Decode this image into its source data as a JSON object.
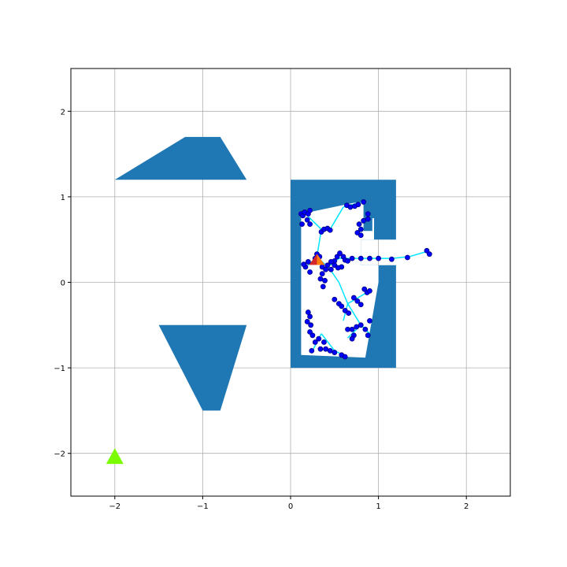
{
  "chart_data": {
    "type": "scatter",
    "title": "",
    "xlabel": "",
    "ylabel": "",
    "xlim": [
      -2.5,
      2.5
    ],
    "ylim": [
      -2.5,
      2.5
    ],
    "grid": true,
    "legend": "none",
    "x_ticks": [
      -2,
      -1,
      0,
      1,
      2
    ],
    "y_ticks": [
      -2,
      -1,
      0,
      1,
      2
    ],
    "x_tick_labels": [
      "−2",
      "−1",
      "0",
      "1",
      "2"
    ],
    "y_tick_labels": [
      "−2",
      "−1",
      "0",
      "1",
      "2"
    ],
    "colors": {
      "obstacle": "#1f77b4",
      "edge": "#00e5ff",
      "node": "#0000ff",
      "node_edge": "#000080",
      "start_marker_left": "#d62728",
      "start_marker_right": "#ff7f0e",
      "goal_marker": "#7cfc00",
      "grid": "#b0b0b0"
    },
    "obstacles": [
      {
        "name": "upper-trapezoid",
        "points": [
          [
            -2.0,
            1.2
          ],
          [
            -1.2,
            1.7
          ],
          [
            -0.8,
            1.7
          ],
          [
            -0.5,
            1.2
          ]
        ]
      },
      {
        "name": "lower-trapezoid",
        "points": [
          [
            -1.5,
            -0.5
          ],
          [
            -0.5,
            -0.5
          ],
          [
            -0.8,
            -1.5
          ],
          [
            -1.0,
            -1.5
          ]
        ]
      },
      {
        "name": "enclosure",
        "points": [
          [
            0.0,
            1.2
          ],
          [
            1.2,
            1.2
          ],
          [
            1.2,
            0.5
          ],
          [
            0.8,
            0.5
          ],
          [
            0.8,
            0.2
          ],
          [
            1.2,
            0.2
          ],
          [
            1.2,
            -1.0
          ],
          [
            0.0,
            -1.0
          ]
        ]
      }
    ],
    "free_region": [
      [
        0.12,
        0.8
      ],
      [
        0.72,
        0.93
      ],
      [
        0.83,
        0.93
      ],
      [
        0.83,
        0.6
      ],
      [
        0.93,
        0.6
      ],
      [
        0.93,
        0.75
      ],
      [
        0.95,
        0.75
      ],
      [
        0.95,
        0.5
      ],
      [
        0.8,
        0.5
      ],
      [
        0.8,
        0.2
      ],
      [
        1.0,
        0.2
      ],
      [
        1.0,
        -0.0
      ],
      [
        0.85,
        -0.88
      ],
      [
        0.12,
        -0.85
      ]
    ],
    "start": {
      "x": 0.3,
      "y": 0.25
    },
    "goal": {
      "x": -2.0,
      "y": -2.05
    },
    "tree_edges": [
      [
        [
          0.3,
          0.3
        ],
        [
          0.35,
          0.62
        ]
      ],
      [
        [
          0.35,
          0.62
        ],
        [
          0.45,
          0.62
        ]
      ],
      [
        [
          0.35,
          0.62
        ],
        [
          0.25,
          0.72
        ]
      ],
      [
        [
          0.25,
          0.72
        ],
        [
          0.15,
          0.82
        ]
      ],
      [
        [
          0.45,
          0.62
        ],
        [
          0.6,
          0.88
        ]
      ],
      [
        [
          0.6,
          0.88
        ],
        [
          0.85,
          0.95
        ]
      ],
      [
        [
          0.3,
          0.3
        ],
        [
          0.45,
          0.15
        ]
      ],
      [
        [
          0.45,
          0.15
        ],
        [
          0.55,
          0.0
        ]
      ],
      [
        [
          0.55,
          0.0
        ],
        [
          0.65,
          -0.25
        ]
      ],
      [
        [
          0.65,
          -0.25
        ],
        [
          0.8,
          -0.5
        ]
      ],
      [
        [
          0.8,
          -0.5
        ],
        [
          0.9,
          -0.6
        ]
      ],
      [
        [
          0.65,
          -0.25
        ],
        [
          0.9,
          -0.1
        ]
      ],
      [
        [
          0.55,
          0.28
        ],
        [
          0.75,
          0.28
        ]
      ],
      [
        [
          0.75,
          0.28
        ],
        [
          1.15,
          0.28
        ]
      ],
      [
        [
          1.15,
          0.28
        ],
        [
          1.35,
          0.3
        ]
      ],
      [
        [
          1.35,
          0.3
        ],
        [
          1.55,
          0.36
        ]
      ],
      [
        [
          0.55,
          0.28
        ],
        [
          0.45,
          0.2
        ]
      ],
      [
        [
          0.3,
          0.3
        ],
        [
          0.2,
          0.2
        ]
      ],
      [
        [
          0.35,
          -0.6
        ],
        [
          0.25,
          -0.8
        ]
      ],
      [
        [
          0.35,
          -0.6
        ],
        [
          0.5,
          -0.8
        ]
      ],
      [
        [
          0.5,
          -0.8
        ],
        [
          0.6,
          -0.85
        ]
      ],
      [
        [
          0.8,
          -0.5
        ],
        [
          0.65,
          -0.65
        ]
      ],
      [
        [
          0.65,
          -0.25
        ],
        [
          0.6,
          -0.45
        ]
      ]
    ],
    "tree_nodes": [
      [
        0.12,
        0.8
      ],
      [
        0.14,
        0.78
      ],
      [
        0.16,
        0.82
      ],
      [
        0.2,
        0.8
      ],
      [
        0.22,
        0.84
      ],
      [
        0.19,
        0.73
      ],
      [
        0.13,
        0.68
      ],
      [
        0.22,
        0.68
      ],
      [
        0.35,
        0.59
      ],
      [
        0.38,
        0.62
      ],
      [
        0.42,
        0.63
      ],
      [
        0.45,
        0.61
      ],
      [
        0.64,
        0.9
      ],
      [
        0.68,
        0.88
      ],
      [
        0.73,
        0.89
      ],
      [
        0.77,
        0.91
      ],
      [
        0.83,
        0.94
      ],
      [
        0.88,
        0.8
      ],
      [
        0.88,
        0.74
      ],
      [
        0.83,
        0.72
      ],
      [
        0.78,
        0.68
      ],
      [
        0.8,
        0.62
      ],
      [
        0.76,
        0.58
      ],
      [
        0.8,
        0.55
      ],
      [
        0.28,
        0.28
      ],
      [
        0.3,
        0.33
      ],
      [
        0.33,
        0.3
      ],
      [
        0.2,
        0.24
      ],
      [
        0.17,
        0.18
      ],
      [
        0.15,
        0.21
      ],
      [
        0.22,
        0.12
      ],
      [
        0.36,
        0.18
      ],
      [
        0.4,
        0.15
      ],
      [
        0.36,
        0.1
      ],
      [
        0.34,
        0.04
      ],
      [
        0.39,
        0.02
      ],
      [
        0.37,
        -0.05
      ],
      [
        0.5,
        0.25
      ],
      [
        0.53,
        0.3
      ],
      [
        0.56,
        0.34
      ],
      [
        0.5,
        0.2
      ],
      [
        0.46,
        0.24
      ],
      [
        0.6,
        0.3
      ],
      [
        0.62,
        0.26
      ],
      [
        0.65,
        0.25
      ],
      [
        0.7,
        0.28
      ],
      [
        0.58,
        0.18
      ],
      [
        0.8,
        0.28
      ],
      [
        0.9,
        0.28
      ],
      [
        1.0,
        0.28
      ],
      [
        1.15,
        0.27
      ],
      [
        1.33,
        0.29
      ],
      [
        1.55,
        0.37
      ],
      [
        1.58,
        0.33
      ],
      [
        0.42,
        0.2
      ],
      [
        0.46,
        0.15
      ],
      [
        0.54,
        0.17
      ],
      [
        0.5,
        -0.2
      ],
      [
        0.55,
        -0.25
      ],
      [
        0.58,
        -0.28
      ],
      [
        0.62,
        -0.33
      ],
      [
        0.66,
        -0.36
      ],
      [
        0.72,
        -0.18
      ],
      [
        0.76,
        -0.22
      ],
      [
        0.8,
        -0.26
      ],
      [
        0.84,
        -0.08
      ],
      [
        0.87,
        -0.12
      ],
      [
        0.9,
        -0.1
      ],
      [
        0.2,
        -0.35
      ],
      [
        0.22,
        -0.4
      ],
      [
        0.19,
        -0.46
      ],
      [
        0.23,
        -0.5
      ],
      [
        0.22,
        -0.58
      ],
      [
        0.25,
        -0.62
      ],
      [
        0.28,
        -0.7
      ],
      [
        0.32,
        -0.66
      ],
      [
        0.38,
        -0.7
      ],
      [
        0.4,
        -0.78
      ],
      [
        0.34,
        -0.78
      ],
      [
        0.24,
        -0.8
      ],
      [
        0.45,
        -0.8
      ],
      [
        0.5,
        -0.82
      ],
      [
        0.58,
        -0.85
      ],
      [
        0.62,
        -0.87
      ],
      [
        0.65,
        -0.55
      ],
      [
        0.7,
        -0.55
      ],
      [
        0.75,
        -0.52
      ],
      [
        0.8,
        -0.5
      ],
      [
        0.85,
        -0.55
      ],
      [
        0.88,
        -0.62
      ],
      [
        0.72,
        -0.62
      ],
      [
        0.7,
        -0.66
      ],
      [
        0.9,
        -0.45
      ]
    ]
  }
}
